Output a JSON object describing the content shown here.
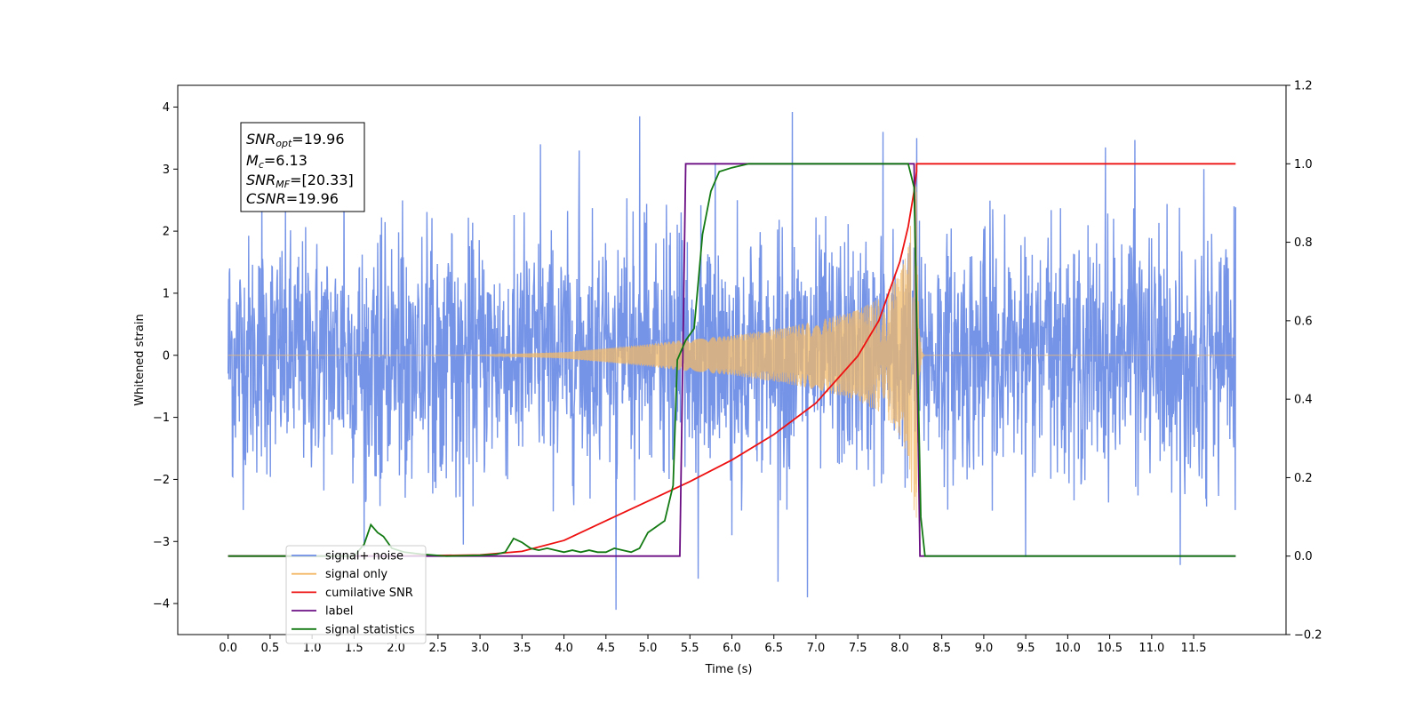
{
  "chart_data": {
    "type": "line",
    "xlabel": "Time (s)",
    "ylabel": "Whitened strain",
    "xlim": [
      -0.6,
      12.6
    ],
    "ylim": [
      -4.5,
      4.35
    ],
    "y2lim": [
      -0.2,
      1.2
    ],
    "grid": false,
    "legend_position": "lower-left",
    "x_ticks": [
      "0.0",
      "0.5",
      "1.0",
      "1.5",
      "2.0",
      "2.5",
      "3.0",
      "3.5",
      "4.0",
      "4.5",
      "5.0",
      "5.5",
      "6.0",
      "6.5",
      "7.0",
      "7.5",
      "8.0",
      "8.5",
      "9.0",
      "9.5",
      "10.0",
      "10.5",
      "11.0",
      "11.5"
    ],
    "y_ticks": [
      "−4",
      "−3",
      "−2",
      "−1",
      "0",
      "1",
      "2",
      "3",
      "4"
    ],
    "y2_ticks": [
      "−0.2",
      "0.0",
      "0.2",
      "0.4",
      "0.6",
      "0.8",
      "1.0",
      "1.2"
    ],
    "annotation": {
      "snr_opt": {
        "base": "SNR",
        "sub": "opt",
        "value": "=19.96"
      },
      "mc": {
        "base": "M",
        "sub": "c",
        "value": "=6.13"
      },
      "snr_mf": {
        "base": "SNR",
        "sub": "MF",
        "value": "=[20.33]"
      },
      "csnr": {
        "base": "CSNR",
        "sub": "",
        "value": "=19.96"
      }
    },
    "series": [
      {
        "name": "signal+ noise",
        "color": "#6f8ee6",
        "axis": "left",
        "kind": "noise",
        "x_range": [
          0.0,
          12.0
        ],
        "envelope_typical": 2.2,
        "spikes": [
          [
            0.02,
            1.4
          ],
          [
            0.05,
            -1.95
          ],
          [
            0.4,
            2.7
          ],
          [
            1.38,
            2.85
          ],
          [
            1.62,
            -3.1
          ],
          [
            2.8,
            -3.05
          ],
          [
            3.72,
            3.4
          ],
          [
            4.18,
            3.3
          ],
          [
            4.62,
            -4.1
          ],
          [
            4.9,
            3.85
          ],
          [
            5.6,
            -3.6
          ],
          [
            5.8,
            3.1
          ],
          [
            6.0,
            -2.9
          ],
          [
            6.55,
            -3.65
          ],
          [
            6.72,
            3.92
          ],
          [
            6.9,
            -3.9
          ],
          [
            7.8,
            3.6
          ],
          [
            8.2,
            3.5
          ],
          [
            9.5,
            -3.25
          ],
          [
            10.45,
            3.35
          ],
          [
            10.8,
            3.47
          ],
          [
            11.34,
            -3.38
          ],
          [
            11.62,
            3.0
          ],
          [
            11.98,
            2.4
          ]
        ]
      },
      {
        "name": "signal only",
        "color": "#f3b968",
        "axis": "left",
        "kind": "chirp",
        "x_range": [
          0.0,
          12.0
        ],
        "chirp_start": 2.9,
        "merger": 8.2,
        "amplitude_points": [
          [
            2.9,
            0.0
          ],
          [
            4.0,
            0.05
          ],
          [
            5.0,
            0.18
          ],
          [
            5.5,
            0.26
          ],
          [
            6.0,
            0.32
          ],
          [
            6.5,
            0.42
          ],
          [
            7.0,
            0.55
          ],
          [
            7.5,
            0.73
          ],
          [
            7.8,
            0.95
          ],
          [
            8.0,
            1.3
          ],
          [
            8.1,
            1.75
          ],
          [
            8.17,
            2.6
          ],
          [
            8.2,
            2.75
          ]
        ],
        "ringdown_end": 8.3
      },
      {
        "name": "cumilative SNR",
        "color": "#ee1111",
        "axis": "right",
        "x": [
          0.0,
          2.0,
          3.0,
          3.5,
          4.0,
          4.5,
          5.0,
          5.5,
          6.0,
          6.5,
          7.0,
          7.5,
          7.75,
          8.0,
          8.1,
          8.17,
          8.2,
          8.2,
          8.6,
          12.0
        ],
        "y": [
          0.0,
          0.0,
          0.003,
          0.012,
          0.04,
          0.09,
          0.14,
          0.19,
          0.245,
          0.31,
          0.39,
          0.51,
          0.6,
          0.75,
          0.84,
          0.93,
          0.98,
          1.0,
          1.0,
          1.0
        ]
      },
      {
        "name": "label",
        "color": "#6a0d83",
        "axis": "right",
        "x": [
          0.0,
          5.38,
          5.45,
          8.17,
          8.24,
          12.0
        ],
        "y": [
          0.0,
          0.0,
          1.0,
          1.0,
          0.0,
          0.0
        ]
      },
      {
        "name": "signal statistics",
        "color": "#137a13",
        "axis": "right",
        "x": [
          0.0,
          1.3,
          1.5,
          1.62,
          1.7,
          1.78,
          1.85,
          1.95,
          2.1,
          2.3,
          2.6,
          3.0,
          3.2,
          3.3,
          3.4,
          3.5,
          3.6,
          3.7,
          3.8,
          3.9,
          4.0,
          4.1,
          4.2,
          4.3,
          4.4,
          4.5,
          4.6,
          4.7,
          4.8,
          4.9,
          5.0,
          5.1,
          5.2,
          5.3,
          5.35,
          5.45,
          5.55,
          5.65,
          5.75,
          5.85,
          6.0,
          6.2,
          6.4,
          7.0,
          8.1,
          8.17,
          8.25,
          8.3,
          12.0
        ],
        "y": [
          0.0,
          0.0,
          0.0,
          0.03,
          0.08,
          0.06,
          0.05,
          0.02,
          0.01,
          0.005,
          0.0,
          0.002,
          0.005,
          0.01,
          0.045,
          0.035,
          0.02,
          0.015,
          0.02,
          0.015,
          0.01,
          0.015,
          0.01,
          0.015,
          0.01,
          0.01,
          0.02,
          0.015,
          0.01,
          0.02,
          0.06,
          0.075,
          0.09,
          0.18,
          0.5,
          0.55,
          0.58,
          0.82,
          0.93,
          0.98,
          0.99,
          1.0,
          1.0,
          1.0,
          1.0,
          0.94,
          0.1,
          0.0,
          0.0
        ]
      }
    ]
  }
}
